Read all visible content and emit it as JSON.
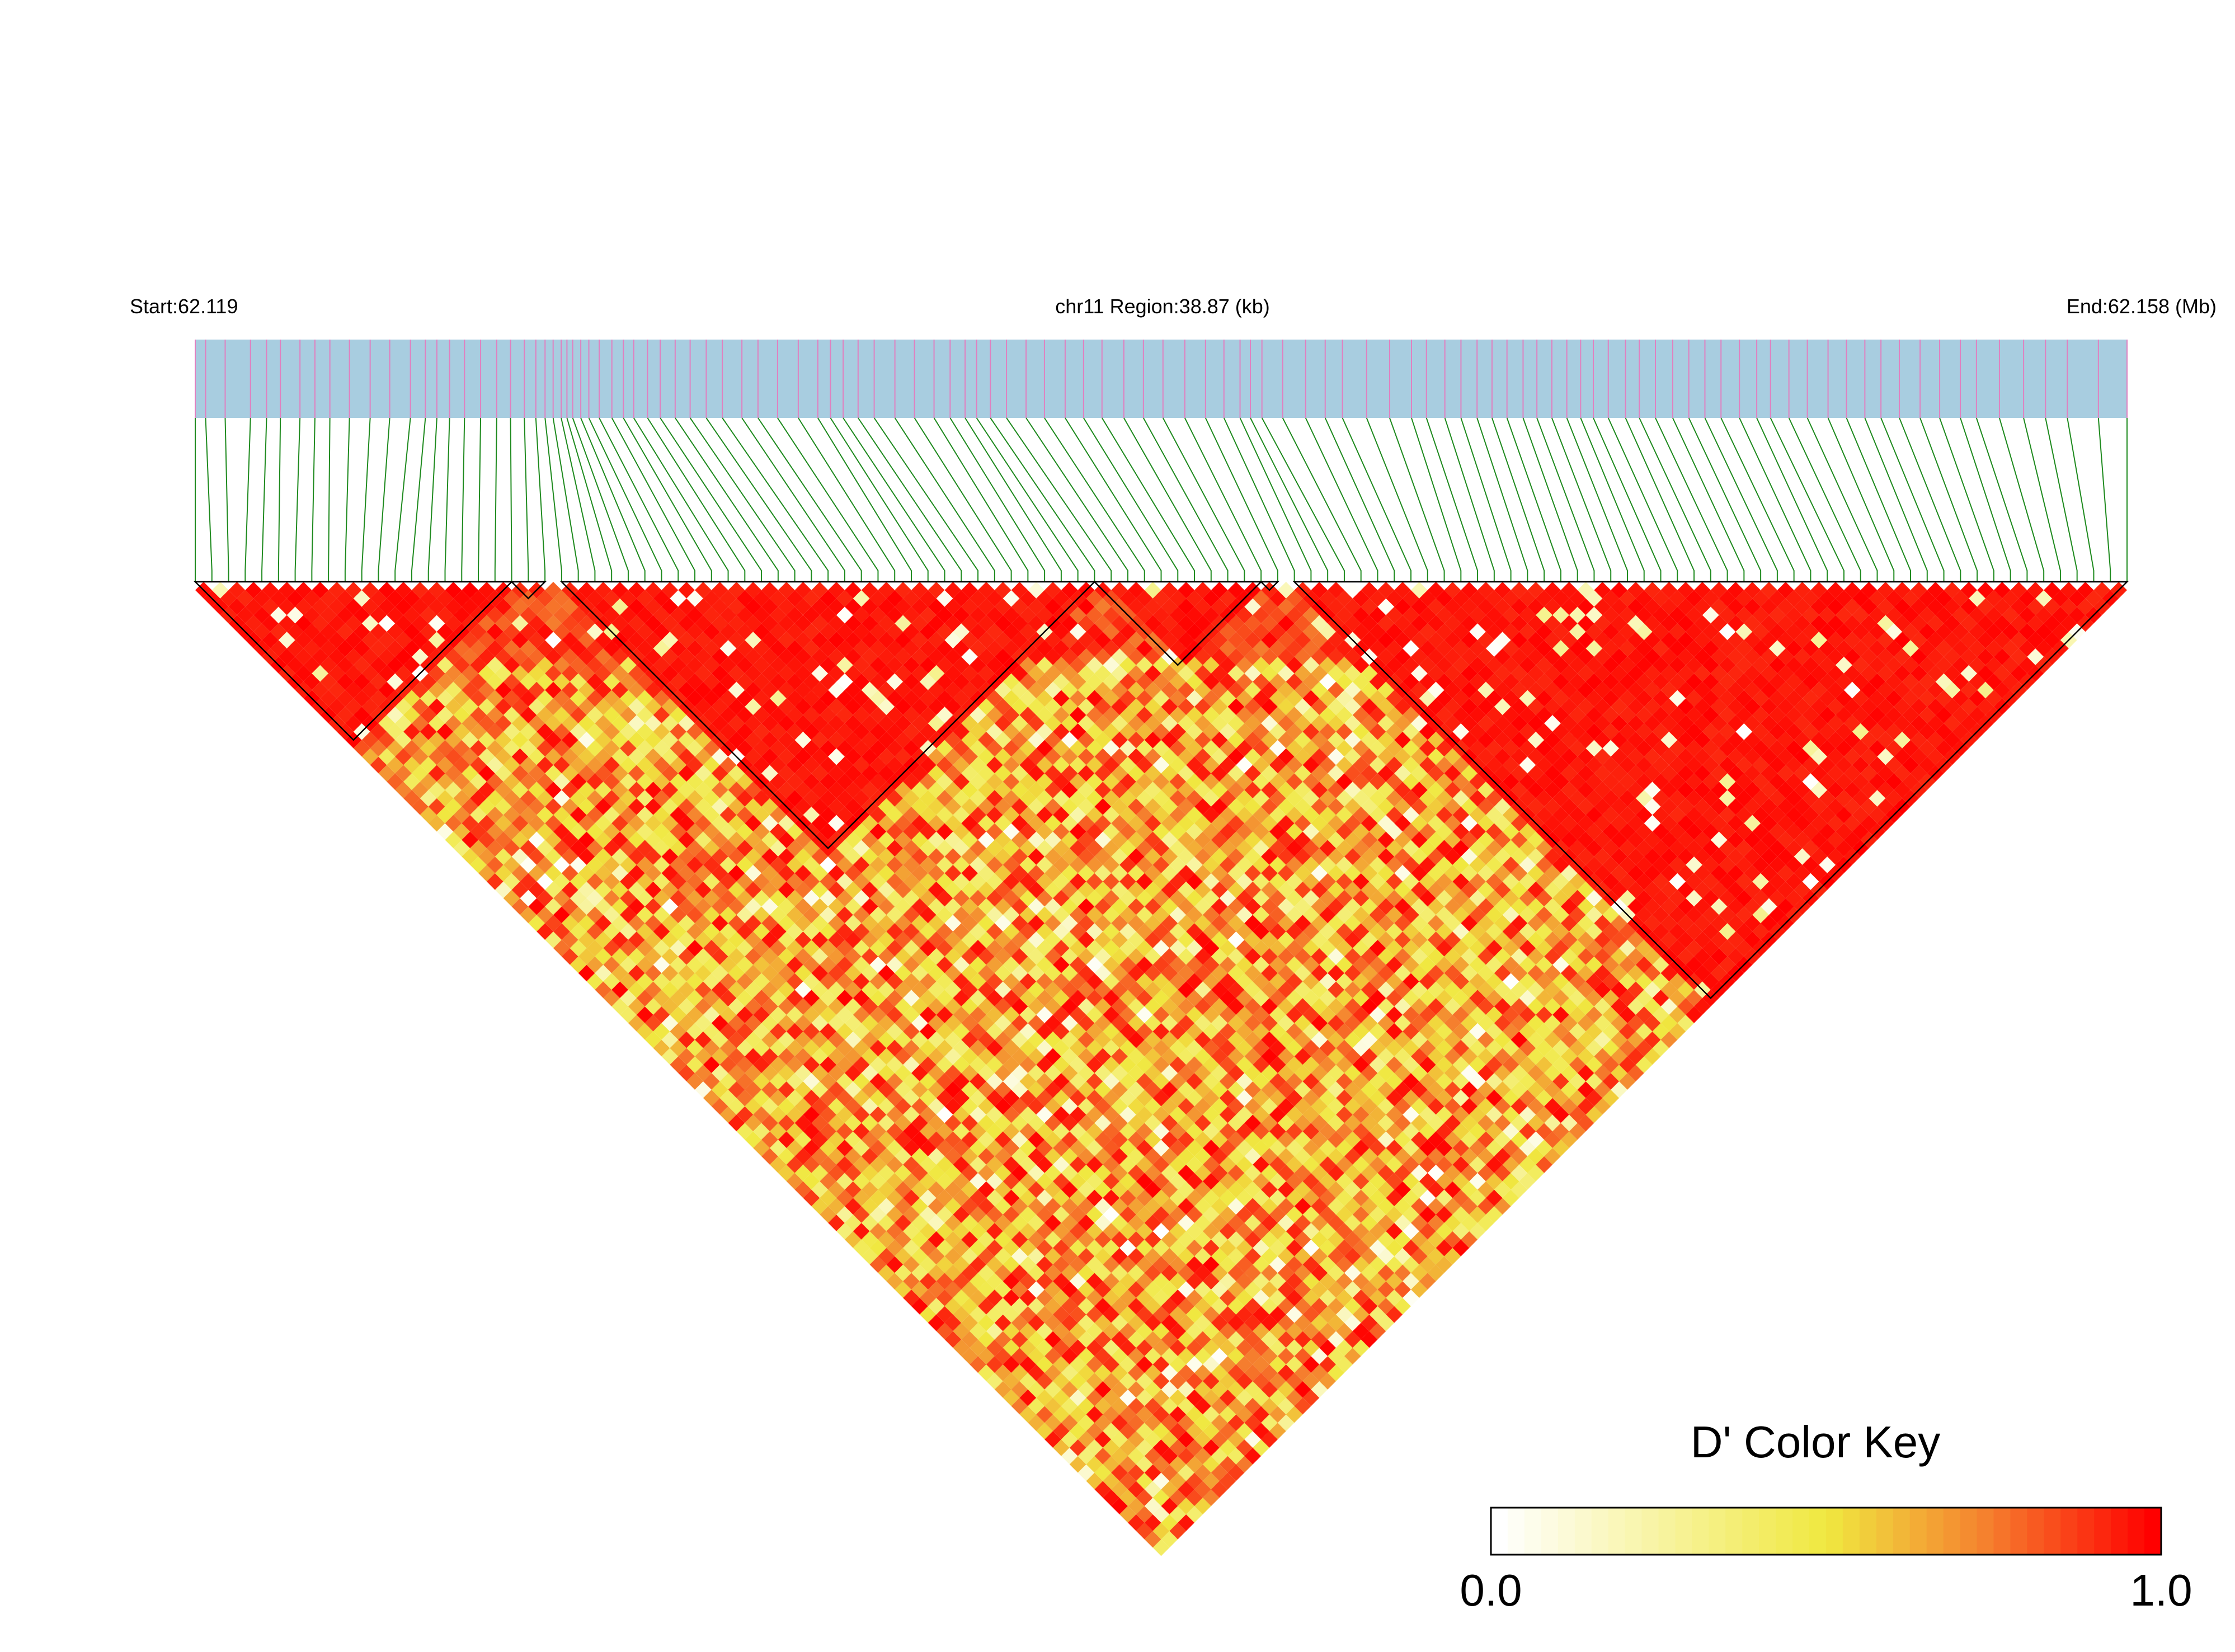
{
  "chart_data": {
    "type": "heatmap",
    "subtype": "ld-triangle",
    "header": {
      "start_label": "Start:62.119",
      "region_label": "chr11 Region:38.87 (kb)",
      "end_label": "End:62.158 (Mb)"
    },
    "chromosome": "chr11",
    "region_start_mb": 62.119,
    "region_end_mb": 62.158,
    "region_size_kb": 38.87,
    "n_snps": 117,
    "snp_positions_mb": [
      62.119,
      62.119209,
      62.119604,
      62.120115,
      62.12044,
      62.120719,
      62.121114,
      62.121416,
      62.121718,
      62.122113,
      62.122531,
      62.122926,
      62.123344,
      62.123646,
      62.123878,
      62.124134,
      62.124436,
      62.124761,
      62.125086,
      62.125365,
      62.125644,
      62.125876,
      62.126062,
      62.126225,
      62.126388,
      62.126504,
      62.12662,
      62.126783,
      62.126946,
      62.127155,
      62.127411,
      62.127643,
      62.127852,
      62.128131,
      62.128387,
      62.128689,
      62.128991,
      62.129316,
      62.129641,
      62.130036,
      62.130361,
      62.130756,
      62.131174,
      62.131569,
      62.131824,
      62.13208,
      62.132382,
      62.132707,
      62.133125,
      62.13352,
      62.133915,
      62.13424,
      62.134542,
      62.134774,
      62.135053,
      62.135378,
      62.135773,
      62.136144,
      62.136562,
      62.136934,
      62.137306,
      62.137747,
      62.138142,
      62.138537,
      62.138978,
      62.139396,
      62.139768,
      62.140093,
      62.140302,
      62.140535,
      62.140953,
      62.141417,
      62.141812,
      62.14216,
      62.142648,
      62.143113,
      62.143554,
      62.143856,
      62.144228,
      62.144553,
      62.144878,
      62.14518,
      62.145482,
      62.145807,
      62.146086,
      62.146388,
      62.14669,
      62.146969,
      62.147225,
      62.147527,
      62.147875,
      62.148154,
      62.148479,
      62.148828,
      62.149153,
      62.149478,
      62.149803,
      62.150175,
      62.150524,
      62.150802,
      62.151174,
      62.151546,
      62.151964,
      62.152336,
      62.152707,
      62.153032,
      62.153404,
      62.153822,
      62.154217,
      62.154635,
      62.15496,
      62.155424,
      62.155912,
      62.156354,
      62.156795,
      62.157422,
      62.158
    ],
    "haplotype_blocks": [
      {
        "first_snp": 1,
        "last_snp": 20
      },
      {
        "first_snp": 20,
        "last_snp": 22
      },
      {
        "first_snp": 23,
        "last_snp": 55
      },
      {
        "first_snp": 55,
        "last_snp": 65
      },
      {
        "first_snp": 65,
        "last_snp": 66
      },
      {
        "first_snp": 67,
        "last_snp": 117
      }
    ],
    "color_key": {
      "title": "D' Color Key",
      "min_label": "0.0",
      "max_label": "1.0",
      "min": 0.0,
      "max": 1.0,
      "stops": [
        {
          "value": 0.0,
          "color": "#ffffff"
        },
        {
          "value": 0.5,
          "color": "#f0e840"
        },
        {
          "value": 0.75,
          "color": "#f57e2e"
        },
        {
          "value": 1.0,
          "color": "#ff0000"
        }
      ]
    },
    "colors": {
      "gene_track": "#a8cde0",
      "snp_tick": "#e080c0",
      "connector_line": "#1e8a1e",
      "block_outline": "#000000"
    }
  }
}
